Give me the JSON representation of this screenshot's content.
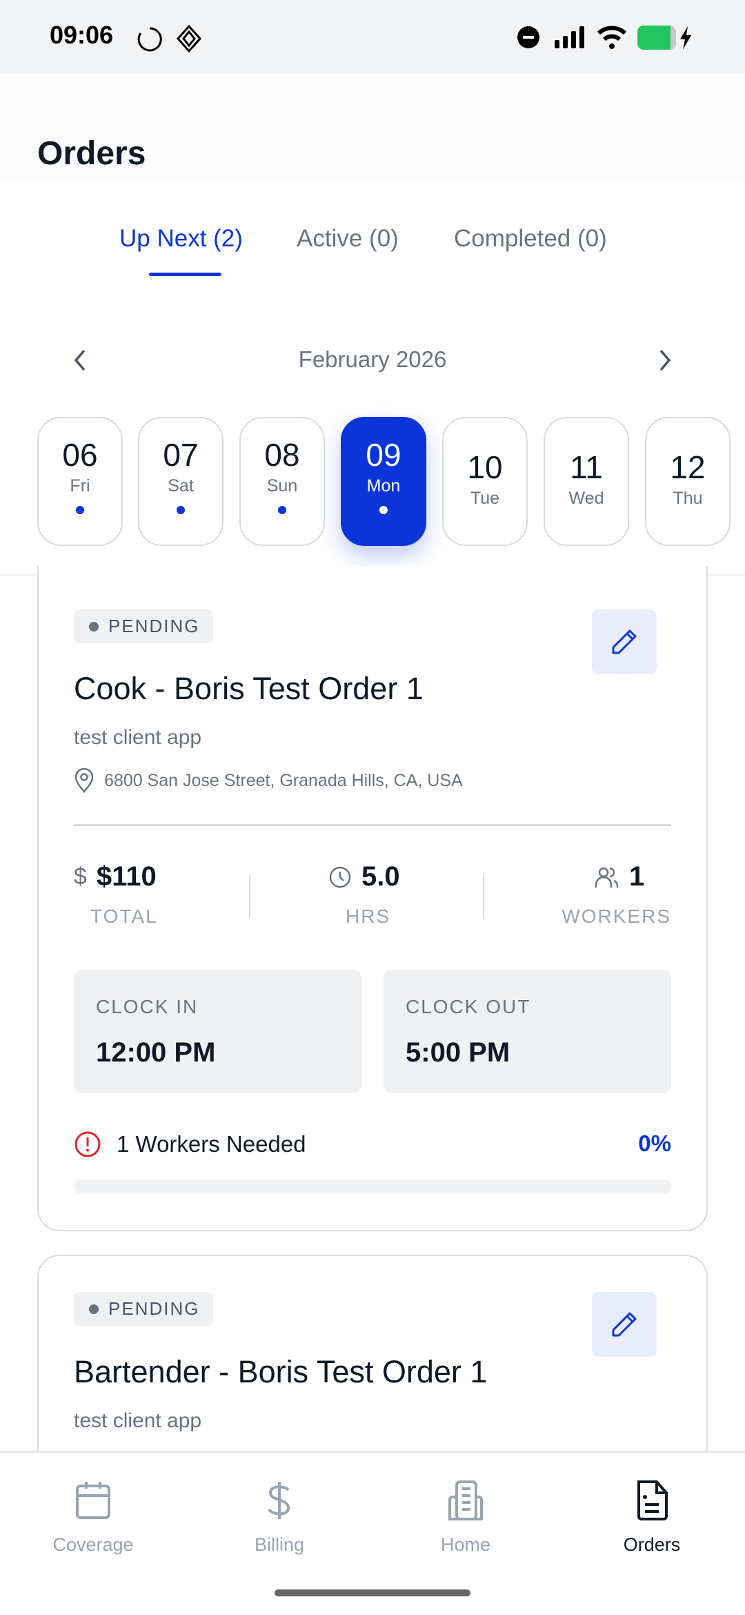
{
  "status_bar": {
    "time": "09:06"
  },
  "header": {
    "title": "Orders"
  },
  "tabs": [
    {
      "label": "Up Next (2)",
      "active": true
    },
    {
      "label": "Active (0)"
    },
    {
      "label": "Completed (0)"
    }
  ],
  "calendar": {
    "month": "February 2026",
    "days": [
      {
        "num": "06",
        "dow": "Fri",
        "dot": true
      },
      {
        "num": "07",
        "dow": "Sat",
        "dot": true
      },
      {
        "num": "08",
        "dow": "Sun",
        "dot": true
      },
      {
        "num": "09",
        "dow": "Mon",
        "dot": true,
        "selected": true
      },
      {
        "num": "10",
        "dow": "Tue"
      },
      {
        "num": "11",
        "dow": "Wed"
      },
      {
        "num": "12",
        "dow": "Thu"
      }
    ]
  },
  "orders": [
    {
      "status": "PENDING",
      "title": "Cook - Boris Test Order 1",
      "client": "test client app",
      "address": "6800 San Jose Street, Granada Hills, CA, USA",
      "total": "$110",
      "total_label": "TOTAL",
      "hours": "5.0",
      "hours_label": "HRS",
      "workers": "1",
      "workers_label": "WORKERS",
      "clock_in_label": "CLOCK IN",
      "clock_in": "12:00 PM",
      "clock_out_label": "CLOCK OUT",
      "clock_out": "5:00 PM",
      "needed": "1 Workers Needed",
      "percent": "0%",
      "progress": 0
    },
    {
      "status": "PENDING",
      "title": "Bartender - Boris Test Order 1",
      "client": "test client app"
    }
  ],
  "nav": [
    {
      "label": "Coverage",
      "icon": "calendar-icon"
    },
    {
      "label": "Billing",
      "icon": "dollar-icon"
    },
    {
      "label": "Home",
      "icon": "building-icon"
    },
    {
      "label": "Orders",
      "icon": "document-icon",
      "active": true
    }
  ],
  "colors": {
    "accent": "#0b35d9",
    "danger": "#dc2626",
    "battery": "#22c55e"
  }
}
